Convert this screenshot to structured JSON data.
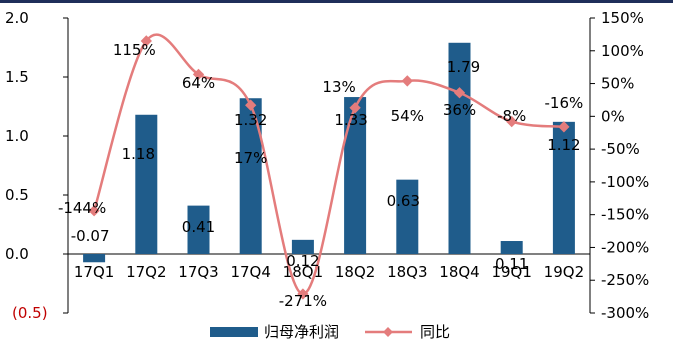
{
  "chart_data": {
    "type": "bar+line",
    "categories": [
      "17Q1",
      "17Q2",
      "17Q3",
      "17Q4",
      "18Q1",
      "18Q2",
      "18Q3",
      "18Q4",
      "19Q1",
      "19Q2"
    ],
    "series": [
      {
        "name": "归母净利润",
        "type": "bar",
        "axis": "left",
        "values": [
          -0.07,
          1.18,
          0.41,
          1.32,
          0.12,
          1.33,
          0.63,
          1.79,
          0.11,
          1.12
        ],
        "labels": [
          "-0.07",
          "1.18",
          "0.41",
          "1.32",
          "0.12",
          "1.33",
          "0.63",
          "1.79",
          "0.11",
          "1.12"
        ],
        "color": "#1f5c8b"
      },
      {
        "name": "同比",
        "type": "line",
        "axis": "right",
        "values": [
          -144,
          115,
          64,
          17,
          -271,
          13,
          54,
          36,
          -8,
          -16
        ],
        "labels": [
          "-144%",
          "115%",
          "64%",
          "17%",
          "-271%",
          "13%",
          "54%",
          "36%",
          "-8%",
          "-16%"
        ],
        "color": "#e47c7c"
      }
    ],
    "left_axis": {
      "ticks": [
        "2.0",
        "1.5",
        "1.0",
        "0.5",
        "0.0",
        "(0.5)"
      ],
      "tick_values": [
        2.0,
        1.5,
        1.0,
        0.5,
        0.0,
        -0.5
      ],
      "ylim": [
        -0.5,
        2.0
      ]
    },
    "right_axis": {
      "ticks": [
        "150%",
        "100%",
        "50%",
        "0%",
        "-50%",
        "-100%",
        "-150%",
        "-200%",
        "-250%",
        "-300%"
      ],
      "tick_values": [
        150,
        100,
        50,
        0,
        -50,
        -100,
        -150,
        -200,
        -250,
        -300
      ],
      "ylim": [
        -300,
        150
      ]
    },
    "legend": {
      "position": "bottom",
      "entries": [
        "归母净利润",
        "同比"
      ]
    },
    "colors": {
      "bar": "#1f5c8b",
      "line": "#e47c7c",
      "header_rule": "#1f2f5a",
      "negative_tick": "#c00000"
    }
  }
}
